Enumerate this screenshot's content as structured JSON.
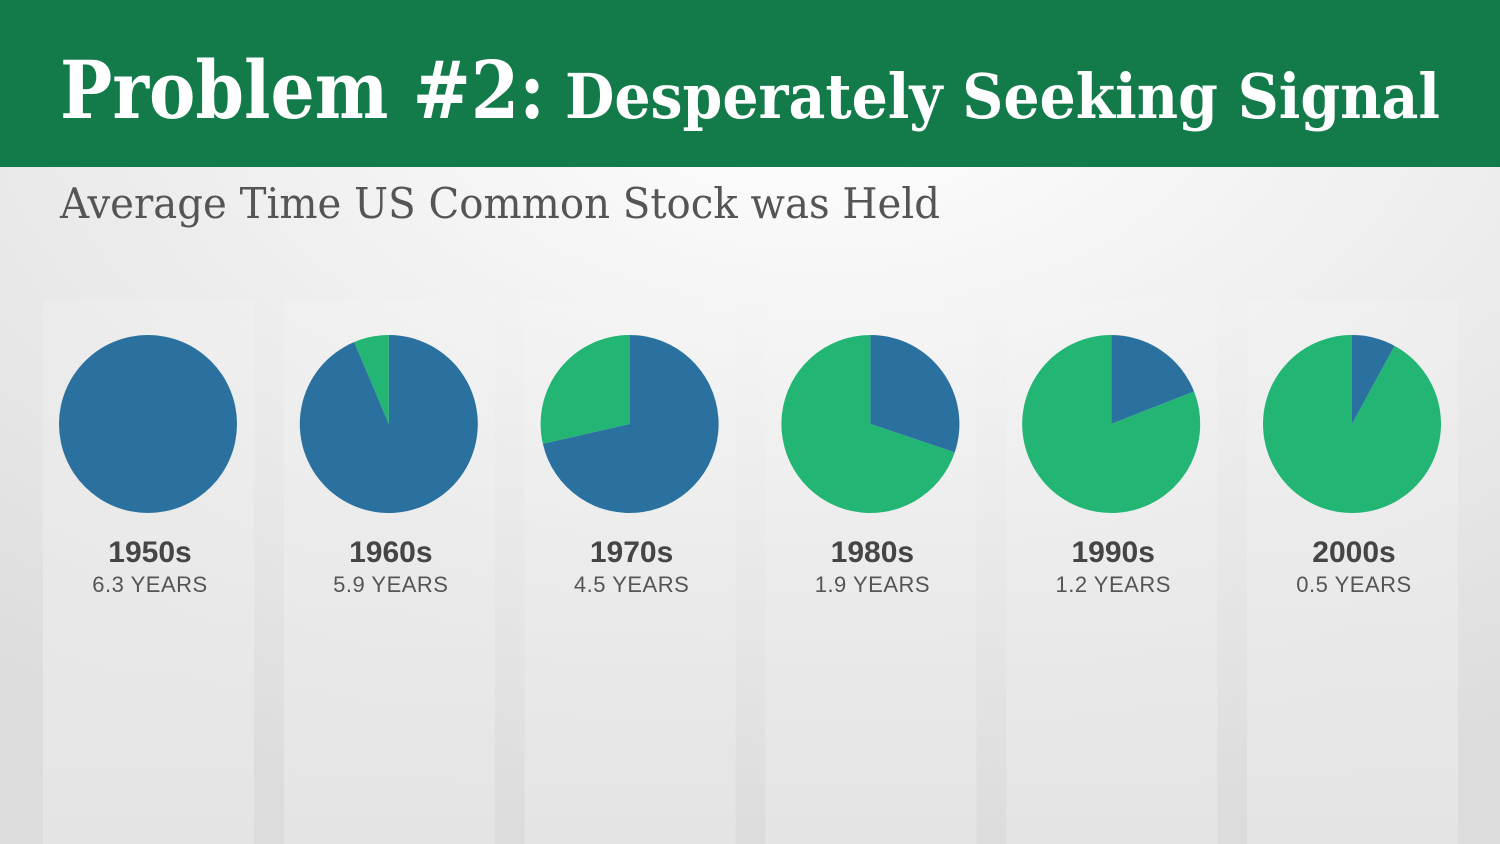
{
  "chart_data": {
    "type": "pie",
    "title_lead": "Problem #2:",
    "title": "Desperately Seeking Signal",
    "subtitle": "Average Time US Common Stock was Held",
    "categories": [
      "1950s",
      "1960s",
      "1970s",
      "1980s",
      "1990s",
      "2000s"
    ],
    "values": [
      6.3,
      5.9,
      4.5,
      1.9,
      1.2,
      0.5
    ],
    "value_labels": [
      "6.3 YEARS",
      "5.9 YEARS",
      "4.5 YEARS",
      "1.9 YEARS",
      "1.2 YEARS",
      "0.5 YEARS"
    ],
    "color": "#2a71a0",
    "remainder_color": "#22b573"
  }
}
